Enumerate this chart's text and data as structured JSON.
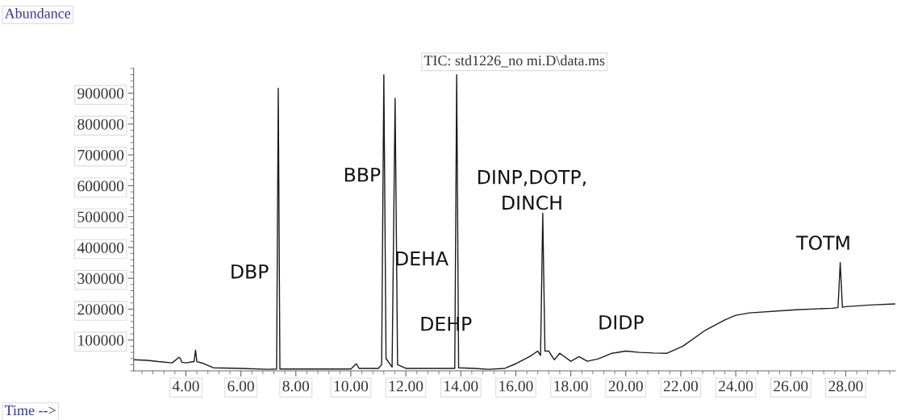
{
  "chart_data": {
    "type": "line",
    "title": "TIC: std1226_no mi.D\\data.ms",
    "xlabel": "Time -->",
    "ylabel": "Abundance",
    "series": [
      {
        "color": "#1a1a1a",
        "x": [
          2.1,
          2.6,
          3.0,
          3.5,
          3.75,
          3.8,
          3.85,
          4.0,
          4.3,
          4.35,
          4.4,
          4.6,
          5.0,
          6.0,
          7.0,
          7.3,
          7.36,
          7.42,
          8.0,
          10.0,
          10.2,
          10.3,
          11.0,
          11.12,
          11.2,
          11.28,
          11.5,
          11.61,
          11.7,
          12.0,
          13.0,
          13.78,
          13.85,
          13.92,
          14.5,
          15.0,
          15.6,
          16.0,
          16.5,
          16.8,
          16.9,
          16.98,
          17.06,
          17.2,
          17.4,
          17.6,
          18.0,
          18.3,
          18.6,
          19.0,
          19.5,
          20.0,
          20.5,
          21.0,
          21.5,
          22.08,
          22.9,
          23.6,
          24.0,
          24.5,
          26.2,
          27.5,
          27.72,
          27.8,
          27.88,
          28.0,
          29.0,
          29.8
        ],
        "values": [
          36000,
          34000,
          30000,
          26000,
          44000,
          40000,
          28000,
          26000,
          30000,
          67000,
          30000,
          25000,
          10000,
          8000,
          5000,
          6000,
          916000,
          6000,
          6000,
          6000,
          23000,
          8000,
          8000,
          20000,
          960000,
          40000,
          12000,
          883000,
          20000,
          8000,
          8000,
          8000,
          960000,
          10000,
          8000,
          5000,
          8000,
          23000,
          46000,
          64000,
          50000,
          511000,
          64000,
          64000,
          36000,
          57000,
          31000,
          46000,
          31000,
          39000,
          57000,
          64000,
          60000,
          58000,
          57000,
          80000,
          132000,
          165000,
          180000,
          188000,
          198000,
          203000,
          205000,
          351000,
          206000,
          208000,
          214000,
          217000
        ]
      }
    ],
    "xlim": [
      2.1,
      29.8
    ],
    "ylim": [
      0,
      980000
    ],
    "xticks": [
      {
        "value": 4,
        "label": "4.00"
      },
      {
        "value": 6,
        "label": "6.00"
      },
      {
        "value": 8,
        "label": "8.00"
      },
      {
        "value": 10,
        "label": "10.00"
      },
      {
        "value": 12,
        "label": "12.00"
      },
      {
        "value": 14,
        "label": "14.00"
      },
      {
        "value": 16,
        "label": "16.00"
      },
      {
        "value": 18,
        "label": "18.00"
      },
      {
        "value": 20,
        "label": "20.00"
      },
      {
        "value": 22,
        "label": "22.00"
      },
      {
        "value": 24,
        "label": "24.00"
      },
      {
        "value": 26,
        "label": "26.00"
      },
      {
        "value": 28,
        "label": "28.00"
      }
    ],
    "yticks": [
      100000,
      200000,
      300000,
      400000,
      500000,
      600000,
      700000,
      800000,
      900000
    ],
    "annotations": [
      "DBP",
      "BBP",
      "DEHA",
      "DEHP",
      "DINP,DOTP,\nDINCH",
      "DIDP",
      "TOTM"
    ],
    "grid": false,
    "legend": false
  }
}
